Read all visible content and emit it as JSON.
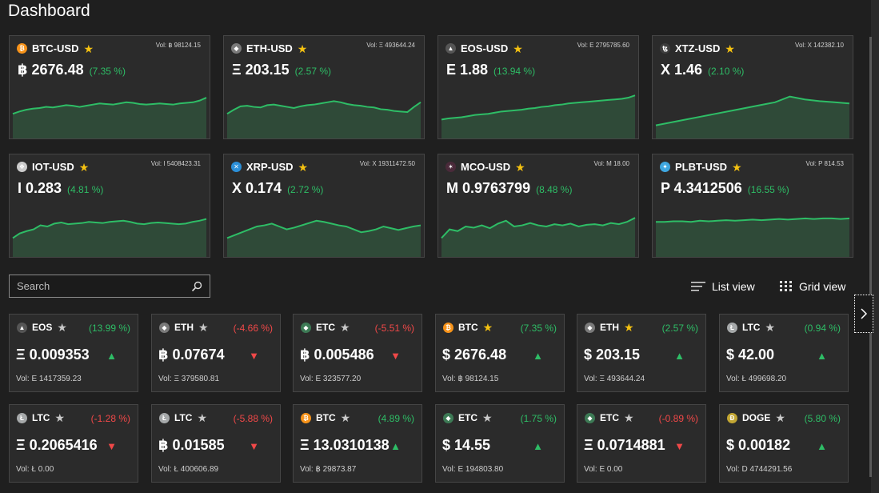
{
  "page": {
    "title": "Dashboard"
  },
  "colors": {
    "up": "#2ebd66",
    "down": "#f04848",
    "star_gold": "#f5c211",
    "star_grey": "#c9c9c9"
  },
  "top_tiles": [
    {
      "name": "BTC-USD",
      "vol": "Vol: ฿ 98124.15",
      "price": "฿ 2676.48",
      "change": "(7.35 %)",
      "icon": "bitcoin-icon",
      "icon_color": "#f7931a",
      "icon_glyph": "₿",
      "favorite": true,
      "series": [
        40,
        44,
        47,
        49,
        50,
        52,
        51,
        53,
        55,
        54,
        52,
        54,
        56,
        58,
        57,
        56,
        58,
        60,
        59,
        57,
        56,
        57,
        58,
        57,
        56,
        58,
        59,
        60,
        63,
        68
      ]
    },
    {
      "name": "ETH-USD",
      "vol": "Vol: Ξ 493644.24",
      "price": "Ξ 203.15",
      "change": "(2.57 %)",
      "icon": "ethereum-icon",
      "icon_color": "#7a7a7a",
      "icon_glyph": "◆",
      "favorite": true,
      "series": [
        40,
        47,
        53,
        54,
        52,
        51,
        55,
        56,
        54,
        52,
        50,
        53,
        55,
        56,
        58,
        60,
        62,
        60,
        57,
        55,
        54,
        52,
        51,
        48,
        47,
        45,
        44,
        43,
        52,
        60
      ]
    },
    {
      "name": "EOS-USD",
      "vol": "Vol: E 2795785.60",
      "price": "E 1.88",
      "change": "(13.94 %)",
      "icon": "eos-icon",
      "icon_color": "#555555",
      "icon_glyph": "▲",
      "favorite": true,
      "series": [
        30,
        32,
        33,
        34,
        36,
        38,
        39,
        40,
        42,
        44,
        45,
        46,
        47,
        49,
        50,
        52,
        53,
        55,
        56,
        58,
        59,
        60,
        61,
        62,
        63,
        64,
        65,
        66,
        68,
        72
      ]
    },
    {
      "name": "XTZ-USD",
      "vol": "Vol: X 142382.10",
      "price": "X 1.46",
      "change": "(2.10 %)",
      "icon": "tezos-icon",
      "icon_color": "#3d3d3d",
      "icon_glyph": "ꜩ",
      "favorite": true,
      "series": [
        20,
        25,
        30,
        35,
        40,
        45,
        50,
        55,
        60,
        70,
        65,
        62,
        60,
        58
      ]
    }
  ],
  "top_tiles2": [
    {
      "name": "IOT-USD",
      "vol": "Vol: I 5408423.31",
      "price": "I 0.283",
      "change": "(4.81 %)",
      "icon": "iota-icon",
      "icon_color": "#cccccc",
      "icon_glyph": "❖",
      "favorite": true,
      "series": [
        30,
        38,
        42,
        45,
        52,
        50,
        55,
        57,
        54,
        55,
        56,
        58,
        57,
        56,
        58,
        59,
        60,
        58,
        55,
        54,
        56,
        57,
        56,
        55,
        54,
        55,
        58,
        60,
        63
      ]
    },
    {
      "name": "XRP-USD",
      "vol": "Vol: X 19311472.50",
      "price": "X 0.174",
      "change": "(2.72 %)",
      "icon": "ripple-icon",
      "icon_color": "#2b8fd8",
      "icon_glyph": "✕",
      "favorite": true,
      "series": [
        30,
        35,
        40,
        45,
        50,
        52,
        55,
        50,
        45,
        48,
        52,
        56,
        60,
        58,
        55,
        52,
        50,
        45,
        40,
        42,
        45,
        50,
        47,
        44,
        47,
        50,
        52
      ]
    },
    {
      "name": "MCO-USD",
      "vol": "Vol: M 18.00",
      "price": "M 0.9763799",
      "change": "(8.48 %)",
      "icon": "monaco-icon",
      "icon_color": "#4a2a3a",
      "icon_glyph": "✶",
      "favorite": true,
      "series": [
        30,
        45,
        42,
        50,
        48,
        52,
        47,
        55,
        60,
        50,
        52,
        56,
        52,
        50,
        54,
        52,
        55,
        50,
        53,
        54,
        52,
        56,
        54,
        58,
        65
      ]
    },
    {
      "name": "PLBT-USD",
      "vol": "Vol: P 814.53",
      "price": "P 4.3412506",
      "change": "(16.55 %)",
      "icon": "polybius-icon",
      "icon_color": "#3fa7e0",
      "icon_glyph": "✦",
      "favorite": true,
      "series": [
        58,
        58,
        59,
        59,
        58,
        60,
        59,
        60,
        61,
        60,
        61,
        62,
        61,
        62,
        63,
        62,
        63,
        64,
        63,
        64,
        64,
        63,
        64
      ]
    }
  ],
  "search": {
    "placeholder": "Search"
  },
  "views": {
    "list_label": "List view",
    "grid_label": "Grid view"
  },
  "cards_row1": [
    {
      "name": "EOS",
      "change": "(13.99 %)",
      "dir": "up",
      "price": "Ξ 0.009353",
      "vol": "Vol: E 1417359.23",
      "icon": "eos-icon",
      "icon_color": "#555555",
      "icon_glyph": "▲",
      "favorite": false
    },
    {
      "name": "ETH",
      "change": "(-4.66 %)",
      "dir": "down",
      "price": "฿ 0.07674",
      "vol": "Vol: Ξ 379580.81",
      "icon": "ethereum-icon",
      "icon_color": "#7a7a7a",
      "icon_glyph": "◆",
      "favorite": false
    },
    {
      "name": "ETC",
      "change": "(-5.51 %)",
      "dir": "down",
      "price": "฿ 0.005486",
      "vol": "Vol: E 323577.20",
      "icon": "ethereum-classic-icon",
      "icon_color": "#3d7a55",
      "icon_glyph": "◆",
      "favorite": false
    },
    {
      "name": "BTC",
      "change": "(7.35 %)",
      "dir": "up",
      "price": "$ 2676.48",
      "vol": "Vol: ฿ 98124.15",
      "icon": "bitcoin-icon",
      "icon_color": "#f7931a",
      "icon_glyph": "₿",
      "favorite": true
    },
    {
      "name": "ETH",
      "change": "(2.57 %)",
      "dir": "up",
      "price": "$ 203.15",
      "vol": "Vol: Ξ 493644.24",
      "icon": "ethereum-icon",
      "icon_color": "#7a7a7a",
      "icon_glyph": "◆",
      "favorite": true
    },
    {
      "name": "LTC",
      "change": "(0.94 %)",
      "dir": "up",
      "price": "$ 42.00",
      "vol": "Vol: Ł 499698.20",
      "icon": "litecoin-icon",
      "icon_color": "#a6a9aa",
      "icon_glyph": "Ł",
      "favorite": false
    }
  ],
  "cards_row2": [
    {
      "name": "LTC",
      "change": "(-1.28 %)",
      "dir": "down",
      "price": "Ξ 0.2065416",
      "vol": "Vol: Ł 0.00",
      "icon": "litecoin-icon",
      "icon_color": "#a6a9aa",
      "icon_glyph": "Ł",
      "favorite": false
    },
    {
      "name": "LTC",
      "change": "(-5.88 %)",
      "dir": "down",
      "price": "฿ 0.01585",
      "vol": "Vol: Ł 400606.89",
      "icon": "litecoin-icon",
      "icon_color": "#a6a9aa",
      "icon_glyph": "Ł",
      "favorite": false
    },
    {
      "name": "BTC",
      "change": "(4.89 %)",
      "dir": "up",
      "price": "Ξ 13.0310138",
      "vol": "Vol: ฿ 29873.87",
      "icon": "bitcoin-icon",
      "icon_color": "#f7931a",
      "icon_glyph": "₿",
      "favorite": false
    },
    {
      "name": "ETC",
      "change": "(1.75 %)",
      "dir": "up",
      "price": "$ 14.55",
      "vol": "Vol: E 194803.80",
      "icon": "ethereum-classic-icon",
      "icon_color": "#3d7a55",
      "icon_glyph": "◆",
      "favorite": false
    },
    {
      "name": "ETC",
      "change": "(-0.89 %)",
      "dir": "down",
      "price": "Ξ 0.0714881",
      "vol": "Vol: E 0.00",
      "icon": "ethereum-classic-icon",
      "icon_color": "#3d7a55",
      "icon_glyph": "◆",
      "favorite": false
    },
    {
      "name": "DOGE",
      "change": "(5.80 %)",
      "dir": "up",
      "price": "$ 0.00182",
      "vol": "Vol: D 4744291.56",
      "icon": "dogecoin-icon",
      "icon_color": "#c2a633",
      "icon_glyph": "Ð",
      "favorite": false
    }
  ],
  "glyphs": {
    "star": "★",
    "up": "▲",
    "down": "▼",
    "chevron": "›"
  }
}
